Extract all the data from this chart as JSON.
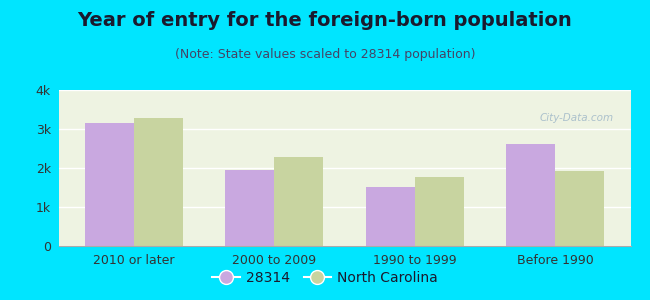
{
  "title": "Year of entry for the foreign-born population",
  "subtitle": "(Note: State values scaled to 28314 population)",
  "categories": [
    "2010 or later",
    "2000 to 2009",
    "1990 to 1999",
    "Before 1990"
  ],
  "values_28314": [
    3150,
    1950,
    1520,
    2620
  ],
  "values_nc": [
    3270,
    2280,
    1780,
    1920
  ],
  "color_28314": "#c9a8e0",
  "color_nc": "#c8d4a0",
  "background_outer": "#00e5ff",
  "background_chart": "#eef3e2",
  "ylim": [
    0,
    4000
  ],
  "yticks": [
    0,
    1000,
    2000,
    3000,
    4000
  ],
  "ytick_labels": [
    "0",
    "1k",
    "2k",
    "3k",
    "4k"
  ],
  "legend_label_28314": "28314",
  "legend_label_nc": "North Carolina",
  "bar_width": 0.35,
  "title_fontsize": 14,
  "subtitle_fontsize": 9,
  "tick_fontsize": 9,
  "legend_fontsize": 10
}
